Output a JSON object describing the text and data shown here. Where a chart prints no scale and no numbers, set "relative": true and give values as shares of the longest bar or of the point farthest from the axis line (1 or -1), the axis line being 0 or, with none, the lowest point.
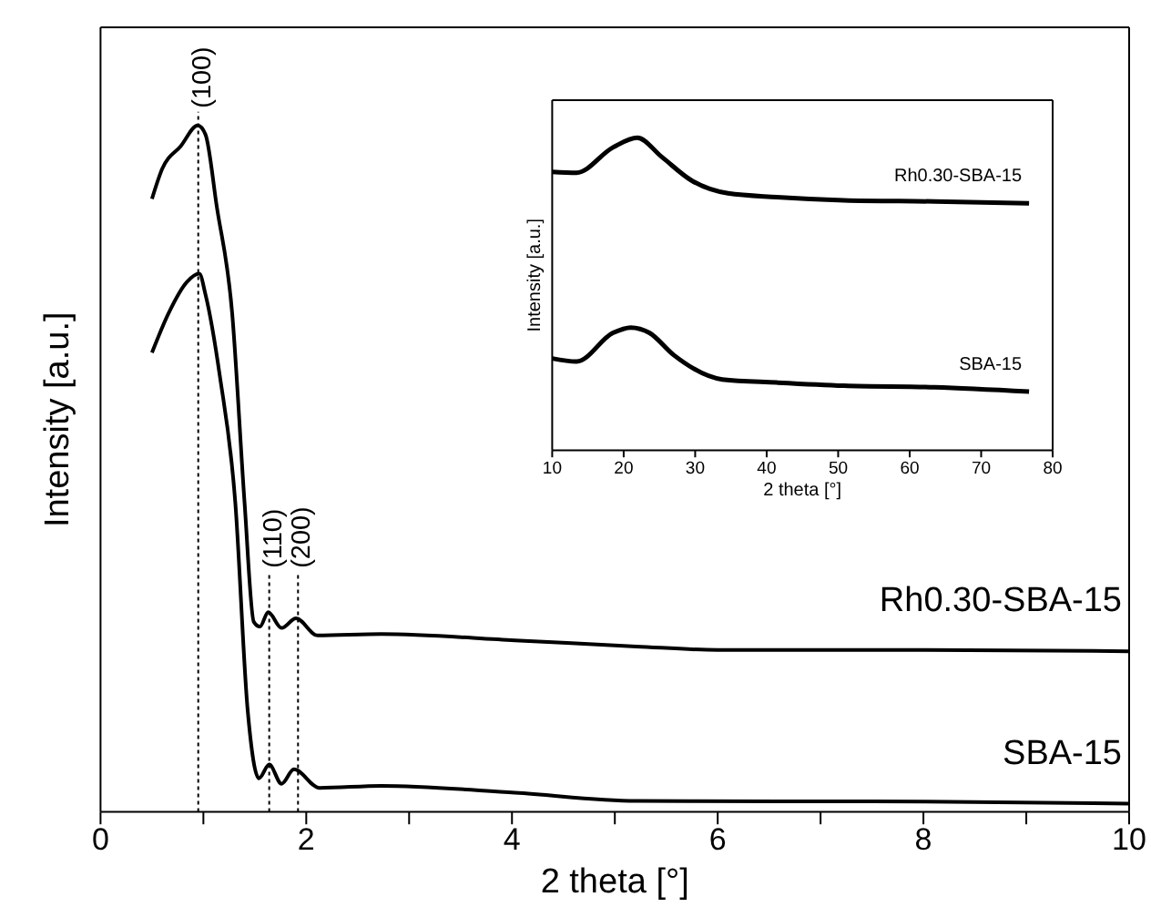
{
  "chart_data": [
    {
      "type": "line",
      "relative": true,
      "xlabel": "2 theta [°]",
      "ylabel": "Intensity [a.u.]",
      "xlim": [
        0,
        10
      ],
      "xticks": [
        0,
        {
          "value": 1,
          "label": null
        },
        2,
        {
          "value": 3,
          "label": null
        },
        4,
        {
          "value": 5,
          "label": null
        },
        6,
        {
          "value": 7,
          "label": null
        },
        8,
        {
          "value": 9,
          "label": null
        },
        10
      ],
      "grid": false,
      "legend": false,
      "marker": "none",
      "line_style": "solid",
      "ref_lines": [
        {
          "axis": "x",
          "value": 0.95,
          "line_style": "dotted",
          "color": "#000000"
        },
        {
          "axis": "x",
          "value": 1.64,
          "line_style": "dotted",
          "color": "#000000"
        },
        {
          "axis": "x",
          "value": 1.92,
          "line_style": "dotted",
          "color": "#000000"
        }
      ],
      "annotations": [
        {
          "text": "(100)",
          "x": 0.95,
          "y": 1.02
        },
        {
          "text": "(110)",
          "x": 1.64,
          "y": 0.35
        },
        {
          "text": "(200)",
          "x": 1.92,
          "y": 0.35
        }
      ],
      "series": [
        {
          "name": "Rh0.30-SBA-15",
          "color": "#000000",
          "x": [
            0.5,
            0.6,
            0.78,
            0.945,
            1.02,
            1.13,
            1.28,
            1.4,
            1.49,
            1.55,
            1.63,
            1.76,
            1.9,
            2.11,
            2.73,
            4.03,
            5.21,
            6,
            8,
            10
          ],
          "values": [
            0.893,
            0.937,
            0.97,
            1.0,
            0.987,
            0.882,
            0.726,
            0.451,
            0.277,
            0.27,
            0.291,
            0.268,
            0.282,
            0.257,
            0.259,
            0.25,
            0.241,
            0.236,
            0.236,
            0.234
          ]
        },
        {
          "name": "SBA-15",
          "color": "#000000",
          "x": [
            0.5,
            0.66,
            0.84,
            0.96,
            1.02,
            1.16,
            1.31,
            1.43,
            1.54,
            1.64,
            1.76,
            1.88,
            2.13,
            2.73,
            4.03,
            5.21,
            8,
            10
          ],
          "values": [
            0.669,
            0.726,
            0.772,
            0.784,
            0.754,
            0.635,
            0.451,
            0.149,
            0.049,
            0.069,
            0.041,
            0.062,
            0.035,
            0.038,
            0.028,
            0.016,
            0.015,
            0.012
          ]
        }
      ]
    },
    {
      "type": "line",
      "relative": true,
      "xlabel": "2 theta [°]",
      "ylabel": "Intensity [a.u.]",
      "xlim": [
        10,
        80
      ],
      "xticks": [
        10,
        20,
        30,
        40,
        50,
        60,
        70,
        80
      ],
      "grid": false,
      "legend": false,
      "marker": "none",
      "line_style": "solid",
      "series": [
        {
          "name": "Rh0.30-SBA-15",
          "color": "#000000",
          "x": [
            10,
            13.4,
            18.5,
            21.9,
            25.3,
            29.5,
            34.6,
            41.4,
            50.8,
            63.5,
            76.7
          ],
          "values": [
            0.891,
            0.888,
            0.969,
            1.0,
            0.939,
            0.863,
            0.822,
            0.81,
            0.8,
            0.796,
            0.79
          ]
        },
        {
          "name": "SBA-15",
          "color": "#000000",
          "x": [
            10,
            13.4,
            18.5,
            21,
            23.6,
            27,
            33.8,
            41.4,
            50.8,
            63.5,
            76.7
          ],
          "values": [
            0.294,
            0.284,
            0.376,
            0.393,
            0.376,
            0.305,
            0.227,
            0.217,
            0.207,
            0.202,
            0.188
          ]
        }
      ]
    }
  ]
}
